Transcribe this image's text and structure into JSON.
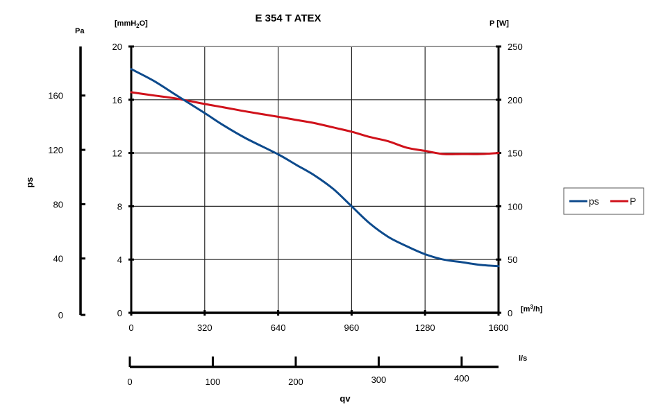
{
  "chart_data": {
    "type": "line",
    "title": "E 354 T ATEX",
    "left_axis_mm": {
      "label": "[mmH2O]",
      "label_main": "[mmH",
      "label_sub": "2",
      "label_tail": "O]",
      "ticks": [
        "0",
        "4",
        "8",
        "12",
        "16",
        "20"
      ],
      "range": [
        0,
        20
      ]
    },
    "left_axis_pa": {
      "unit": "Pa",
      "label": "ps",
      "ticks": [
        "0",
        "40",
        "80",
        "120",
        "160"
      ]
    },
    "right_axis": {
      "label": "P [W]",
      "ticks": [
        "0",
        "50",
        "100",
        "150",
        "200",
        "250"
      ],
      "range": [
        0,
        250
      ]
    },
    "x_axis_m3h": {
      "unit": "[m3/h]",
      "unit_main": "[m",
      "unit_sup": "3",
      "unit_tail": "/h]",
      "ticks": [
        "0",
        "320",
        "640",
        "960",
        "1280",
        "1600"
      ],
      "range": [
        0,
        1600
      ]
    },
    "x_axis_ls": {
      "unit": "l/s",
      "ticks": [
        "0",
        "100",
        "200",
        "300",
        "400"
      ],
      "label": "qv"
    },
    "grid": true,
    "legend_position": "right",
    "series": [
      {
        "name": "ps",
        "axis": "left_mmH2O",
        "color": "#0d4a8c",
        "x": [
          0,
          100,
          200,
          320,
          400,
          500,
          640,
          720,
          800,
          880,
          960,
          1040,
          1120,
          1200,
          1280,
          1360,
          1440,
          1520,
          1600
        ],
        "y": [
          18.3,
          17.4,
          16.3,
          15.0,
          14.1,
          13.1,
          11.9,
          11.1,
          10.3,
          9.3,
          8.0,
          6.7,
          5.7,
          5.0,
          4.4,
          4.0,
          3.8,
          3.6,
          3.5
        ]
      },
      {
        "name": "P",
        "axis": "right_W",
        "color": "#d0121b",
        "x": [
          0,
          100,
          200,
          320,
          400,
          500,
          640,
          720,
          800,
          880,
          960,
          1040,
          1120,
          1200,
          1280,
          1360,
          1440,
          1520,
          1600
        ],
        "y": [
          207,
          204,
          201,
          196,
          193,
          189,
          184,
          181,
          178,
          174,
          170,
          165,
          161,
          155,
          152,
          149,
          149,
          149,
          150
        ]
      }
    ]
  }
}
